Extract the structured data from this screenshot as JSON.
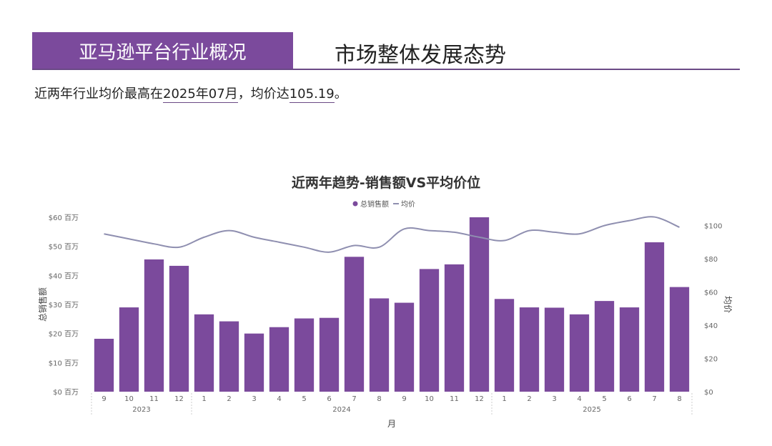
{
  "header": {
    "banner_title": "亚马逊平台行业概况",
    "section_title": "市场整体发展态势"
  },
  "summary": {
    "prefix": "近两年行业均价最高在",
    "peak_month": "2025年07月",
    "middle": "，均价达",
    "peak_value": "105.19",
    "suffix": "。"
  },
  "chart_data": {
    "type": "bar+line",
    "title": "近两年趋势-销售额VS平均价位",
    "legend": [
      "总销售额",
      "均价"
    ],
    "legend_position": "top-center",
    "xlabel": "月",
    "ylabel_left": "总销售额",
    "ylabel_right": "均价",
    "categories": [
      "9",
      "10",
      "11",
      "12",
      "1",
      "2",
      "3",
      "4",
      "5",
      "6",
      "7",
      "8",
      "9",
      "10",
      "11",
      "12",
      "1",
      "2",
      "3",
      "4",
      "5",
      "6",
      "7",
      "8"
    ],
    "year_groups": [
      {
        "label": "2023",
        "start": 0,
        "end": 3
      },
      {
        "label": "2024",
        "start": 4,
        "end": 15
      },
      {
        "label": "2025",
        "start": 16,
        "end": 23
      }
    ],
    "series": [
      {
        "name": "总销售额",
        "type": "bar",
        "axis": "left",
        "color": "#7b4a9c",
        "values": [
          18.2,
          29,
          45.5,
          43.3,
          26.6,
          24.2,
          20,
          22.2,
          25.2,
          25.4,
          46.4,
          32.1,
          30.6,
          42.2,
          43.8,
          60,
          31.9,
          29,
          28.9,
          26.6,
          31.2,
          29,
          51.4,
          36
        ]
      },
      {
        "name": "均价",
        "type": "line",
        "axis": "right",
        "color": "#8f8fb0",
        "values": [
          95,
          92,
          89,
          87,
          93,
          97,
          93,
          90,
          87,
          84,
          88,
          87,
          98,
          97,
          96,
          93,
          91,
          97,
          96,
          95,
          100,
          103,
          105.19,
          99
        ]
      }
    ],
    "ylim_left": [
      0,
      60
    ],
    "yticks_left": [
      "$0 百万",
      "$10 百万",
      "$20 百万",
      "$30 百万",
      "$40 百万",
      "$50 百万",
      "$60 百万"
    ],
    "ylim_right": [
      0,
      105
    ],
    "yticks_right": [
      "$0",
      "$20",
      "$40",
      "$60",
      "$80",
      "$100"
    ],
    "grid": false
  }
}
